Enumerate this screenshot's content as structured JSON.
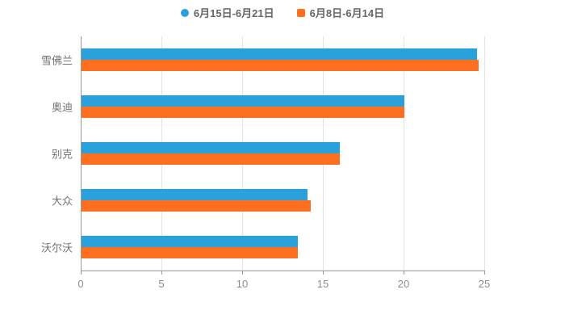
{
  "chart_data": {
    "type": "bar",
    "orientation": "horizontal",
    "title": "",
    "categories": [
      "雪佛兰",
      "奥迪",
      "别克",
      "大众",
      "沃尔沃"
    ],
    "series": [
      {
        "name": "6月15日-6月21日",
        "color": "#2BA1DC",
        "values": [
          24.5,
          20.0,
          16.0,
          14.0,
          13.4
        ]
      },
      {
        "name": "6月8日-6月14日",
        "color": "#FF6F20",
        "values": [
          24.6,
          20.0,
          16.0,
          14.2,
          13.4
        ]
      }
    ],
    "xlim": [
      0,
      25
    ],
    "xticks": [
      0,
      5,
      10,
      15,
      20,
      25
    ],
    "xtick_labels": [
      "0",
      "5",
      "10",
      "15",
      "20",
      "25"
    ],
    "grid": true,
    "legend_position": "top"
  },
  "legend": {
    "items": [
      {
        "label": "6月15日-6月21日",
        "color": "#2BA1DC",
        "marker": "circle"
      },
      {
        "label": "6月8日-6月14日",
        "color": "#FF6F20",
        "marker": "square"
      }
    ]
  },
  "colors": {
    "grid": "#e3e3e3",
    "axis": "#9a9a9a",
    "tick_text": "#8c8c8c",
    "category_text": "#737373",
    "background": "#ffffff"
  }
}
